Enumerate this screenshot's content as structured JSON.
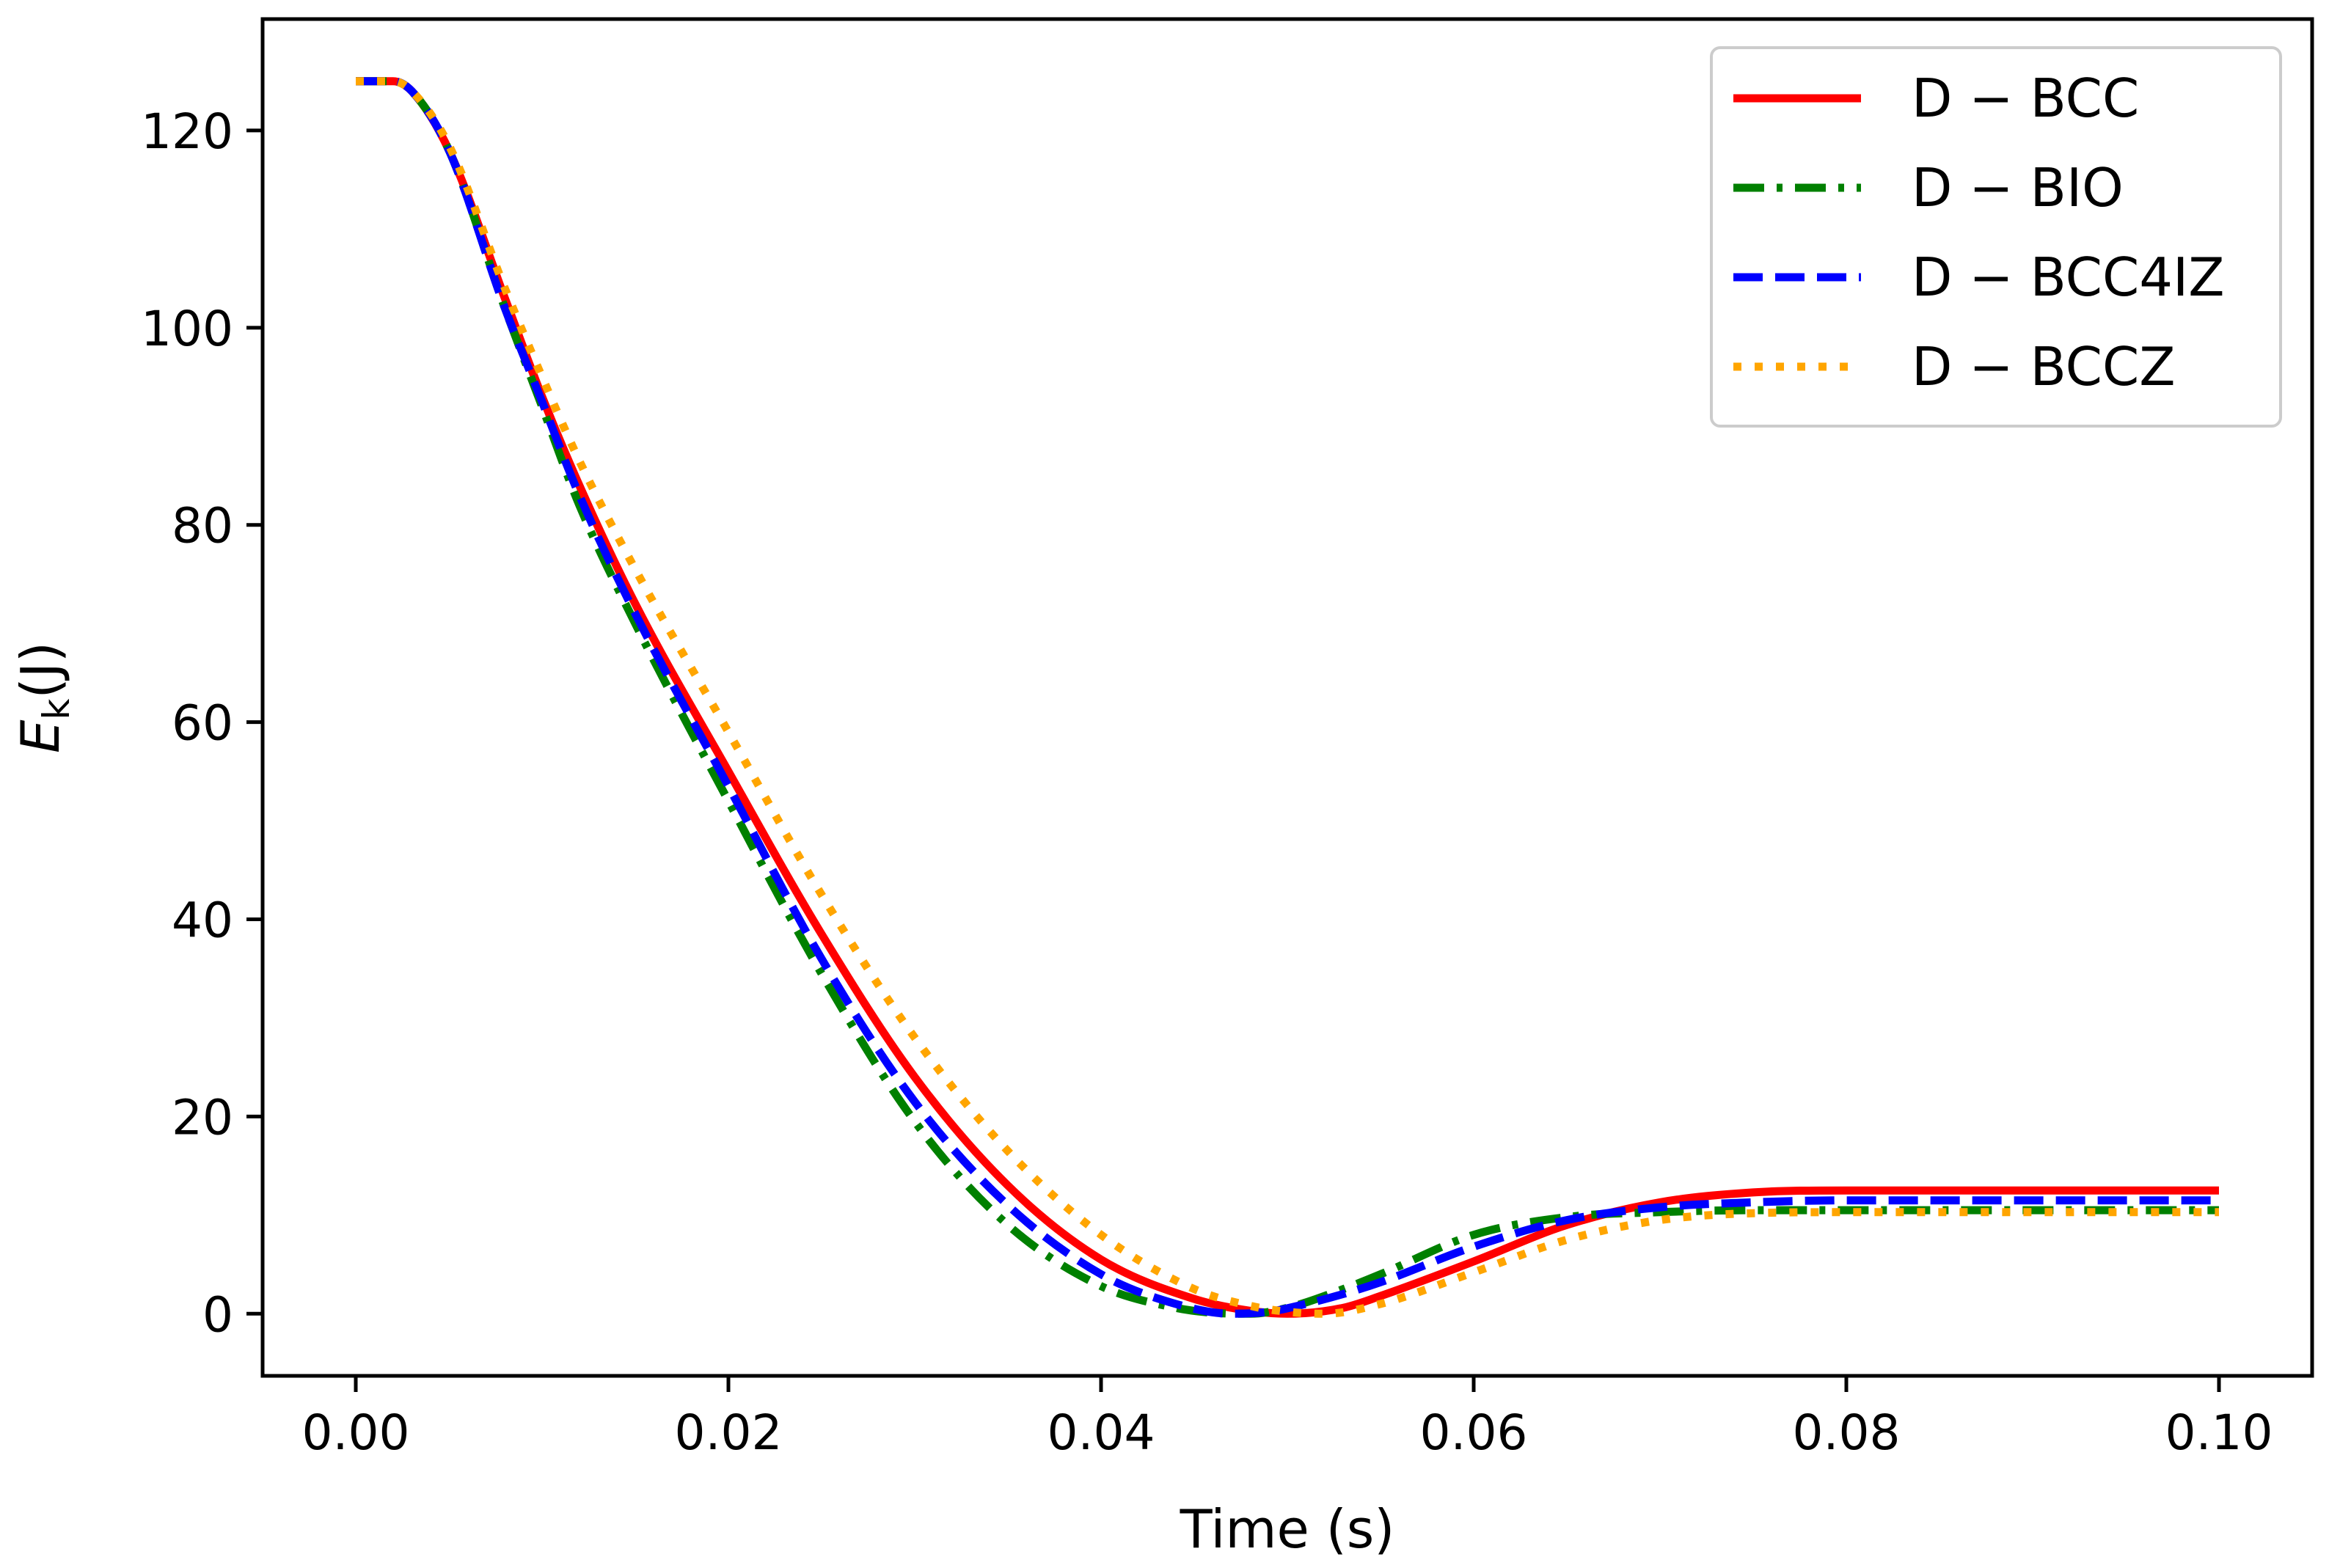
{
  "chart_data": {
    "type": "line",
    "title": "",
    "xlabel": "Time (s)",
    "ylabel": {
      "main": "E",
      "sub": "k",
      "unit": "(J)"
    },
    "xlim": [
      -0.005,
      0.105
    ],
    "ylim": [
      -6.3,
      131.3
    ],
    "x_ticks": [
      "0.00",
      "0.02",
      "0.04",
      "0.06",
      "0.08",
      "0.10"
    ],
    "y_ticks": [
      "0",
      "20",
      "40",
      "60",
      "80",
      "100",
      "120"
    ],
    "grid": false,
    "legend_position": "top-right",
    "series": [
      {
        "name": "D − BCC",
        "color": "#ff0000",
        "style": "solid",
        "x": [
          0.0,
          0.002,
          0.003,
          0.005,
          0.008,
          0.01,
          0.012,
          0.015,
          0.02,
          0.025,
          0.03,
          0.035,
          0.04,
          0.045,
          0.048,
          0.05,
          0.053,
          0.055,
          0.06,
          0.065,
          0.07,
          0.075,
          0.08,
          0.09,
          0.1
        ],
        "y": [
          125.0,
          125.0,
          124.0,
          118.0,
          103.0,
          93.0,
          84.0,
          72.0,
          55.0,
          38.5,
          24.0,
          13.0,
          5.5,
          1.5,
          0.3,
          0.0,
          0.6,
          1.8,
          5.3,
          9.0,
          11.3,
          12.3,
          12.5,
          12.5,
          12.5
        ]
      },
      {
        "name": "D − BIO",
        "color": "#008000",
        "style": "dashdot",
        "x": [
          0.0,
          0.002,
          0.003,
          0.005,
          0.008,
          0.01,
          0.012,
          0.015,
          0.02,
          0.025,
          0.03,
          0.035,
          0.04,
          0.044,
          0.046,
          0.048,
          0.05,
          0.053,
          0.055,
          0.06,
          0.065,
          0.07,
          0.075,
          0.08,
          0.09,
          0.1
        ],
        "y": [
          125.0,
          125.0,
          124.0,
          118.0,
          102.0,
          92.0,
          82.0,
          70.0,
          52.0,
          34.5,
          19.5,
          9.0,
          2.8,
          0.6,
          0.1,
          0.0,
          0.6,
          2.5,
          4.0,
          8.0,
          9.8,
          10.3,
          10.5,
          10.5,
          10.5,
          10.5
        ]
      },
      {
        "name": "D − BCC4IZ",
        "color": "#0000ff",
        "style": "dashed",
        "x": [
          0.0,
          0.002,
          0.003,
          0.005,
          0.008,
          0.01,
          0.012,
          0.015,
          0.02,
          0.025,
          0.03,
          0.035,
          0.04,
          0.044,
          0.047,
          0.049,
          0.051,
          0.053,
          0.055,
          0.06,
          0.065,
          0.07,
          0.075,
          0.08,
          0.09,
          0.1
        ],
        "y": [
          125.0,
          125.0,
          124.0,
          118.0,
          102.0,
          92.5,
          83.0,
          71.0,
          53.5,
          36.0,
          21.5,
          11.0,
          4.0,
          1.0,
          0.0,
          0.2,
          1.0,
          2.0,
          3.2,
          6.8,
          9.5,
          10.8,
          11.3,
          11.5,
          11.5,
          11.5
        ]
      },
      {
        "name": "D − BCCZ",
        "color": "#ffa500",
        "style": "dotted",
        "x": [
          0.0,
          0.002,
          0.003,
          0.005,
          0.008,
          0.01,
          0.012,
          0.015,
          0.02,
          0.025,
          0.03,
          0.035,
          0.04,
          0.045,
          0.048,
          0.05,
          0.052,
          0.055,
          0.06,
          0.065,
          0.07,
          0.075,
          0.08,
          0.09,
          0.1
        ],
        "y": [
          125.0,
          125.0,
          124.0,
          118.5,
          104.0,
          95.0,
          86.5,
          75.5,
          59.0,
          42.5,
          28.0,
          16.5,
          8.0,
          2.5,
          0.8,
          0.2,
          0.0,
          1.0,
          4.2,
          7.5,
          9.5,
          10.2,
          10.3,
          10.3,
          10.3
        ]
      }
    ]
  }
}
